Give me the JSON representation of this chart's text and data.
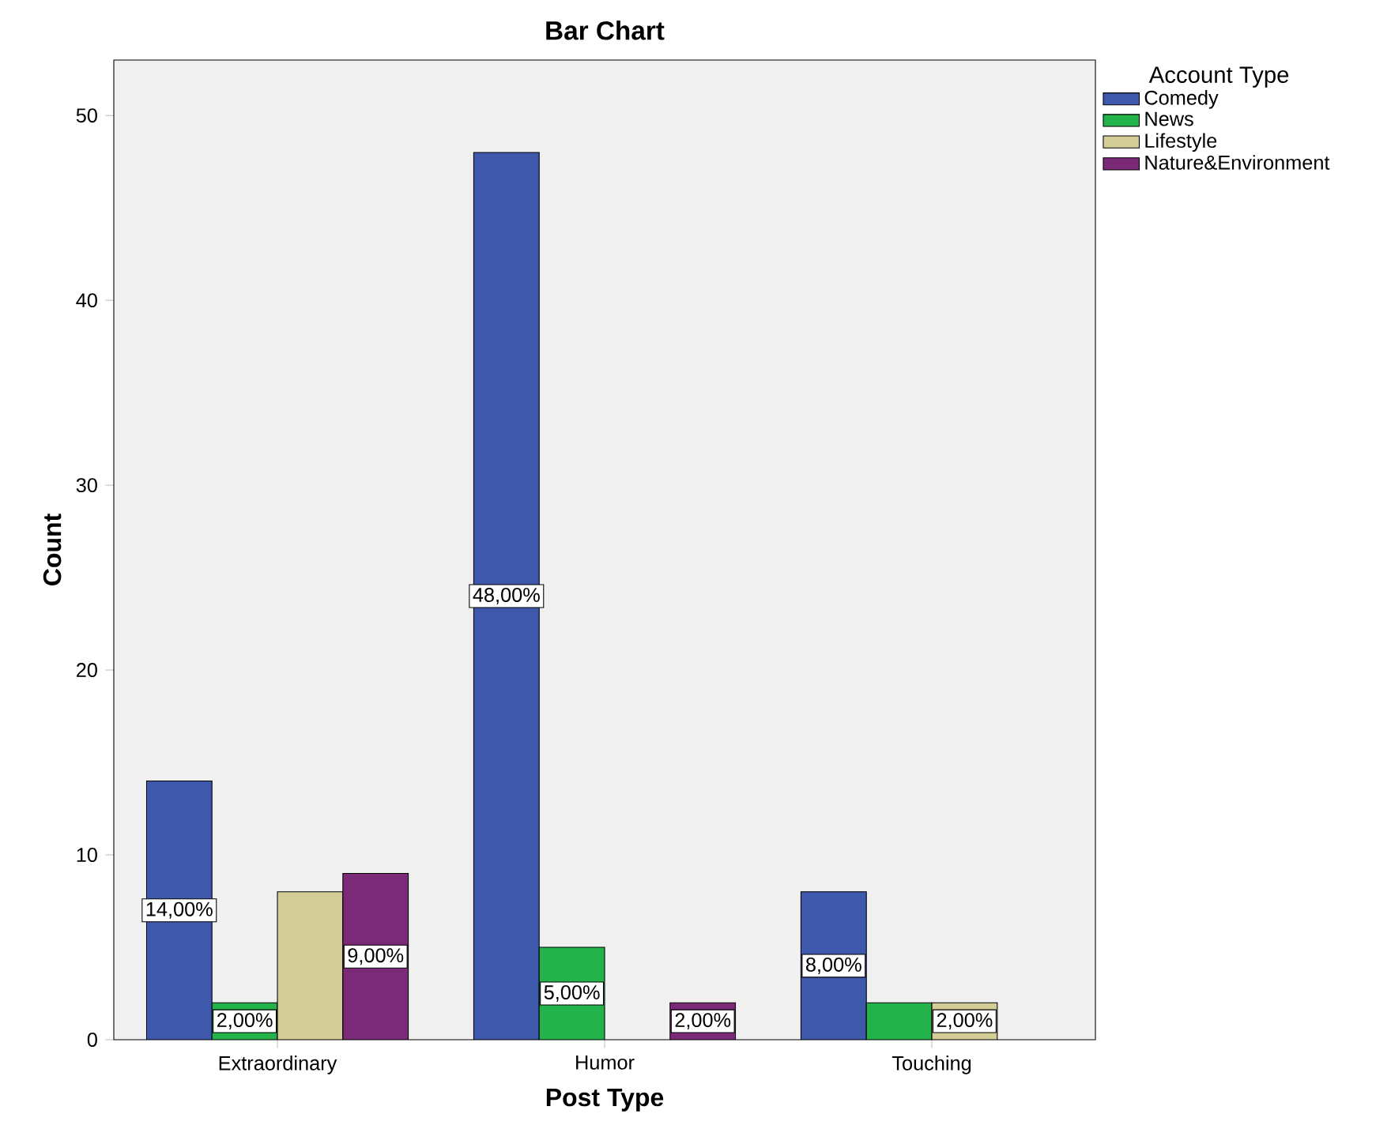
{
  "chart_data": {
    "type": "bar",
    "title": "Bar Chart",
    "xlabel": "Post Type",
    "ylabel": "Count",
    "legend_title": "Account Type",
    "legend": "right",
    "categories": [
      "Extraordinary",
      "Humor",
      "Touching"
    ],
    "series": [
      {
        "name": "Comedy",
        "color": "#3e58ac",
        "values": [
          14,
          48,
          8
        ],
        "value_labels": [
          "14,00%",
          "48,00%",
          "8,00%"
        ]
      },
      {
        "name": "News",
        "color": "#23b34a",
        "values": [
          2,
          5,
          2
        ],
        "value_labels": [
          "2,00%",
          "5,00%",
          null
        ]
      },
      {
        "name": "Lifestyle",
        "color": "#d4cd98",
        "values": [
          8,
          null,
          2
        ],
        "value_labels": [
          null,
          null,
          "2,00%"
        ]
      },
      {
        "name": "Nature&Environment",
        "color": "#7b2a78",
        "values": [
          9,
          2,
          null
        ],
        "value_labels": [
          "9,00%",
          "2,00%",
          null
        ]
      }
    ],
    "ylim": [
      0,
      53
    ],
    "yticks": [
      0,
      10,
      20,
      30,
      40,
      50
    ],
    "grid": false
  }
}
